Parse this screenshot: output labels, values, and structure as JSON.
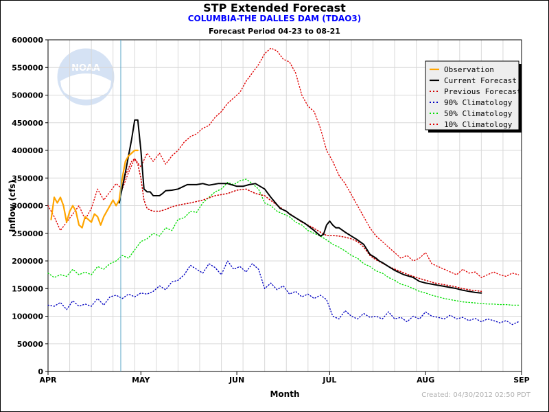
{
  "chart_data": {
    "type": "line",
    "title": "STP Extended Forecast",
    "subtitle": "COLUMBIA-THE DALLES DAM (TDAO3)",
    "period": "Forecast Period 04-23 to 08-21",
    "xlabel": "Month",
    "ylabel": "Inflow (cfs)",
    "ylim": [
      0,
      600000
    ],
    "yticks": [
      0,
      50000,
      100000,
      150000,
      200000,
      250000,
      300000,
      350000,
      400000,
      450000,
      500000,
      550000,
      600000
    ],
    "xlim_days": [
      0,
      153
    ],
    "xticks": [
      {
        "day": 0,
        "label": "APR"
      },
      {
        "day": 30,
        "label": "MAY"
      },
      {
        "day": 61,
        "label": "JUN"
      },
      {
        "day": 91,
        "label": "JUL"
      },
      {
        "day": 122,
        "label": "AUG"
      },
      {
        "day": 153,
        "label": "SEP"
      }
    ],
    "grid": true,
    "current_day": 23.5,
    "created": "Created: 04/30/2012 02:50 PDT",
    "logo_text": "NOAA",
    "series": [
      {
        "name": "Observation",
        "color": "#ffa500",
        "style": "solid",
        "width": 2.2,
        "x": [
          1,
          2,
          3,
          4,
          5,
          6,
          7,
          8,
          9,
          10,
          11,
          12,
          13,
          14,
          15,
          16,
          17,
          18,
          19,
          20,
          21,
          22,
          23,
          24,
          25,
          26,
          27,
          28,
          29
        ],
        "y": [
          275000,
          315000,
          305000,
          315000,
          300000,
          270000,
          290000,
          300000,
          290000,
          265000,
          260000,
          280000,
          275000,
          270000,
          285000,
          280000,
          265000,
          280000,
          290000,
          300000,
          310000,
          300000,
          310000,
          350000,
          380000,
          390000,
          395000,
          400000,
          400000
        ]
      },
      {
        "name": "Current Forecast",
        "color": "#000000",
        "style": "solid",
        "width": 2,
        "x": [
          23,
          25,
          27,
          28,
          29,
          30,
          31,
          32,
          33,
          34,
          35,
          36,
          37,
          38,
          40,
          42,
          45,
          48,
          50,
          52,
          55,
          58,
          61,
          63,
          65,
          67,
          70,
          72,
          75,
          77,
          78,
          80,
          83,
          86,
          88,
          89,
          90,
          91,
          92,
          93,
          94,
          96,
          98,
          100,
          102,
          104,
          106,
          107,
          108,
          110,
          112,
          115,
          118,
          120,
          122,
          125,
          128,
          130,
          132,
          134,
          136,
          138,
          140
        ],
        "y": [
          305000,
          360000,
          420000,
          455000,
          455000,
          400000,
          330000,
          325000,
          325000,
          318000,
          318000,
          318000,
          322000,
          327000,
          328000,
          330000,
          338000,
          338000,
          340000,
          337000,
          340000,
          340000,
          335000,
          335000,
          338000,
          340000,
          330000,
          315000,
          295000,
          290000,
          285000,
          278000,
          268000,
          255000,
          245000,
          248000,
          265000,
          272000,
          265000,
          260000,
          260000,
          252000,
          245000,
          238000,
          230000,
          212000,
          205000,
          200000,
          197000,
          190000,
          183000,
          175000,
          170000,
          163000,
          160000,
          157000,
          154000,
          152000,
          150000,
          147000,
          145000,
          143000,
          142000
        ]
      },
      {
        "name": "Previous Forecast",
        "color": "#d00000",
        "style": "dotted",
        "width": 1.6,
        "x": [
          23,
          25,
          27,
          28,
          29,
          30,
          31,
          32,
          33,
          34,
          36,
          38,
          40,
          43,
          46,
          50,
          54,
          58,
          61,
          64,
          67,
          70,
          73,
          76,
          79,
          82,
          85,
          88,
          90,
          92,
          94,
          96,
          98,
          100,
          102,
          104,
          106,
          108,
          110,
          113,
          116,
          119,
          122,
          125,
          128,
          131,
          134,
          137,
          140
        ],
        "y": [
          310000,
          355000,
          380000,
          385000,
          375000,
          350000,
          310000,
          295000,
          292000,
          290000,
          290000,
          293000,
          298000,
          302000,
          305000,
          310000,
          318000,
          322000,
          328000,
          330000,
          322000,
          318000,
          305000,
          293000,
          282000,
          270000,
          262000,
          252000,
          246000,
          246000,
          245000,
          243000,
          240000,
          235000,
          225000,
          210000,
          202000,
          196000,
          190000,
          183000,
          176000,
          170000,
          165000,
          160000,
          157000,
          154000,
          150000,
          147000,
          145000
        ]
      },
      {
        "name": "90% Climatology",
        "color": "#0000c0",
        "style": "dotted",
        "width": 1.4,
        "x": [
          0,
          2,
          4,
          6,
          8,
          10,
          12,
          14,
          16,
          18,
          20,
          22,
          24,
          26,
          28,
          30,
          32,
          34,
          36,
          38,
          40,
          42,
          44,
          46,
          48,
          50,
          52,
          54,
          56,
          58,
          60,
          62,
          64,
          66,
          68,
          70,
          72,
          74,
          76,
          78,
          80,
          82,
          84,
          86,
          88,
          90,
          92,
          94,
          96,
          98,
          100,
          102,
          104,
          106,
          108,
          110,
          112,
          114,
          116,
          118,
          120,
          122,
          124,
          126,
          128,
          130,
          132,
          134,
          136,
          138,
          140,
          142,
          144,
          146,
          148,
          150,
          152
        ],
        "y": [
          120000,
          118000,
          125000,
          112000,
          128000,
          118000,
          122000,
          118000,
          132000,
          120000,
          135000,
          138000,
          132000,
          140000,
          135000,
          142000,
          140000,
          145000,
          155000,
          148000,
          162000,
          165000,
          175000,
          192000,
          185000,
          178000,
          195000,
          188000,
          175000,
          200000,
          185000,
          190000,
          180000,
          195000,
          185000,
          150000,
          160000,
          148000,
          155000,
          140000,
          145000,
          135000,
          140000,
          132000,
          138000,
          130000,
          100000,
          95000,
          110000,
          100000,
          95000,
          105000,
          98000,
          100000,
          95000,
          108000,
          95000,
          98000,
          90000,
          100000,
          95000,
          108000,
          100000,
          98000,
          95000,
          102000,
          95000,
          98000,
          92000,
          96000,
          90000,
          95000,
          92000,
          88000,
          92000,
          85000,
          90000
        ]
      },
      {
        "name": "50% Climatology",
        "color": "#00dd00",
        "style": "dotted",
        "width": 1.4,
        "x": [
          0,
          2,
          4,
          6,
          8,
          10,
          12,
          14,
          16,
          18,
          20,
          22,
          24,
          26,
          28,
          30,
          32,
          34,
          36,
          38,
          40,
          42,
          44,
          46,
          48,
          50,
          52,
          54,
          56,
          58,
          60,
          62,
          64,
          66,
          68,
          70,
          72,
          74,
          76,
          78,
          80,
          82,
          84,
          86,
          88,
          90,
          92,
          94,
          96,
          98,
          100,
          102,
          104,
          106,
          108,
          110,
          112,
          114,
          116,
          118,
          120,
          122,
          124,
          126,
          128,
          130,
          132,
          134,
          136,
          138,
          140,
          142,
          144,
          146,
          148,
          150,
          152
        ],
        "y": [
          178000,
          170000,
          175000,
          172000,
          185000,
          175000,
          180000,
          175000,
          190000,
          185000,
          195000,
          200000,
          210000,
          205000,
          220000,
          235000,
          240000,
          250000,
          245000,
          260000,
          255000,
          275000,
          278000,
          290000,
          288000,
          305000,
          315000,
          325000,
          330000,
          342000,
          338000,
          345000,
          348000,
          340000,
          330000,
          305000,
          300000,
          290000,
          285000,
          280000,
          270000,
          265000,
          255000,
          250000,
          245000,
          238000,
          230000,
          225000,
          218000,
          210000,
          205000,
          195000,
          190000,
          182000,
          178000,
          170000,
          165000,
          158000,
          155000,
          150000,
          145000,
          142000,
          138000,
          135000,
          132000,
          130000,
          128000,
          126000,
          125000,
          124000,
          123000,
          122000,
          122000,
          121000,
          121000,
          120000,
          120000
        ]
      },
      {
        "name": "10% Climatology",
        "color": "#e00000",
        "style": "dotted",
        "width": 1.4,
        "x": [
          0,
          2,
          4,
          6,
          8,
          10,
          12,
          14,
          16,
          18,
          20,
          22,
          24,
          26,
          28,
          30,
          32,
          34,
          36,
          38,
          40,
          42,
          44,
          46,
          48,
          50,
          52,
          54,
          56,
          58,
          60,
          62,
          64,
          66,
          68,
          70,
          72,
          74,
          76,
          78,
          80,
          82,
          84,
          86,
          88,
          90,
          92,
          94,
          96,
          98,
          100,
          102,
          104,
          106,
          108,
          110,
          112,
          114,
          116,
          118,
          120,
          122,
          124,
          126,
          128,
          130,
          132,
          134,
          136,
          138,
          140,
          142,
          144,
          146,
          148,
          150,
          152
        ],
        "y": [
          300000,
          280000,
          255000,
          270000,
          285000,
          300000,
          275000,
          295000,
          330000,
          310000,
          325000,
          340000,
          330000,
          360000,
          385000,
          370000,
          395000,
          380000,
          395000,
          375000,
          390000,
          400000,
          415000,
          425000,
          430000,
          440000,
          445000,
          460000,
          470000,
          485000,
          495000,
          505000,
          525000,
          540000,
          555000,
          575000,
          585000,
          580000,
          565000,
          560000,
          540000,
          500000,
          480000,
          470000,
          440000,
          400000,
          380000,
          355000,
          340000,
          320000,
          300000,
          280000,
          260000,
          245000,
          235000,
          225000,
          215000,
          205000,
          210000,
          200000,
          205000,
          215000,
          195000,
          190000,
          185000,
          180000,
          175000,
          185000,
          178000,
          180000,
          170000,
          175000,
          180000,
          175000,
          172000,
          178000,
          175000
        ]
      }
    ]
  }
}
